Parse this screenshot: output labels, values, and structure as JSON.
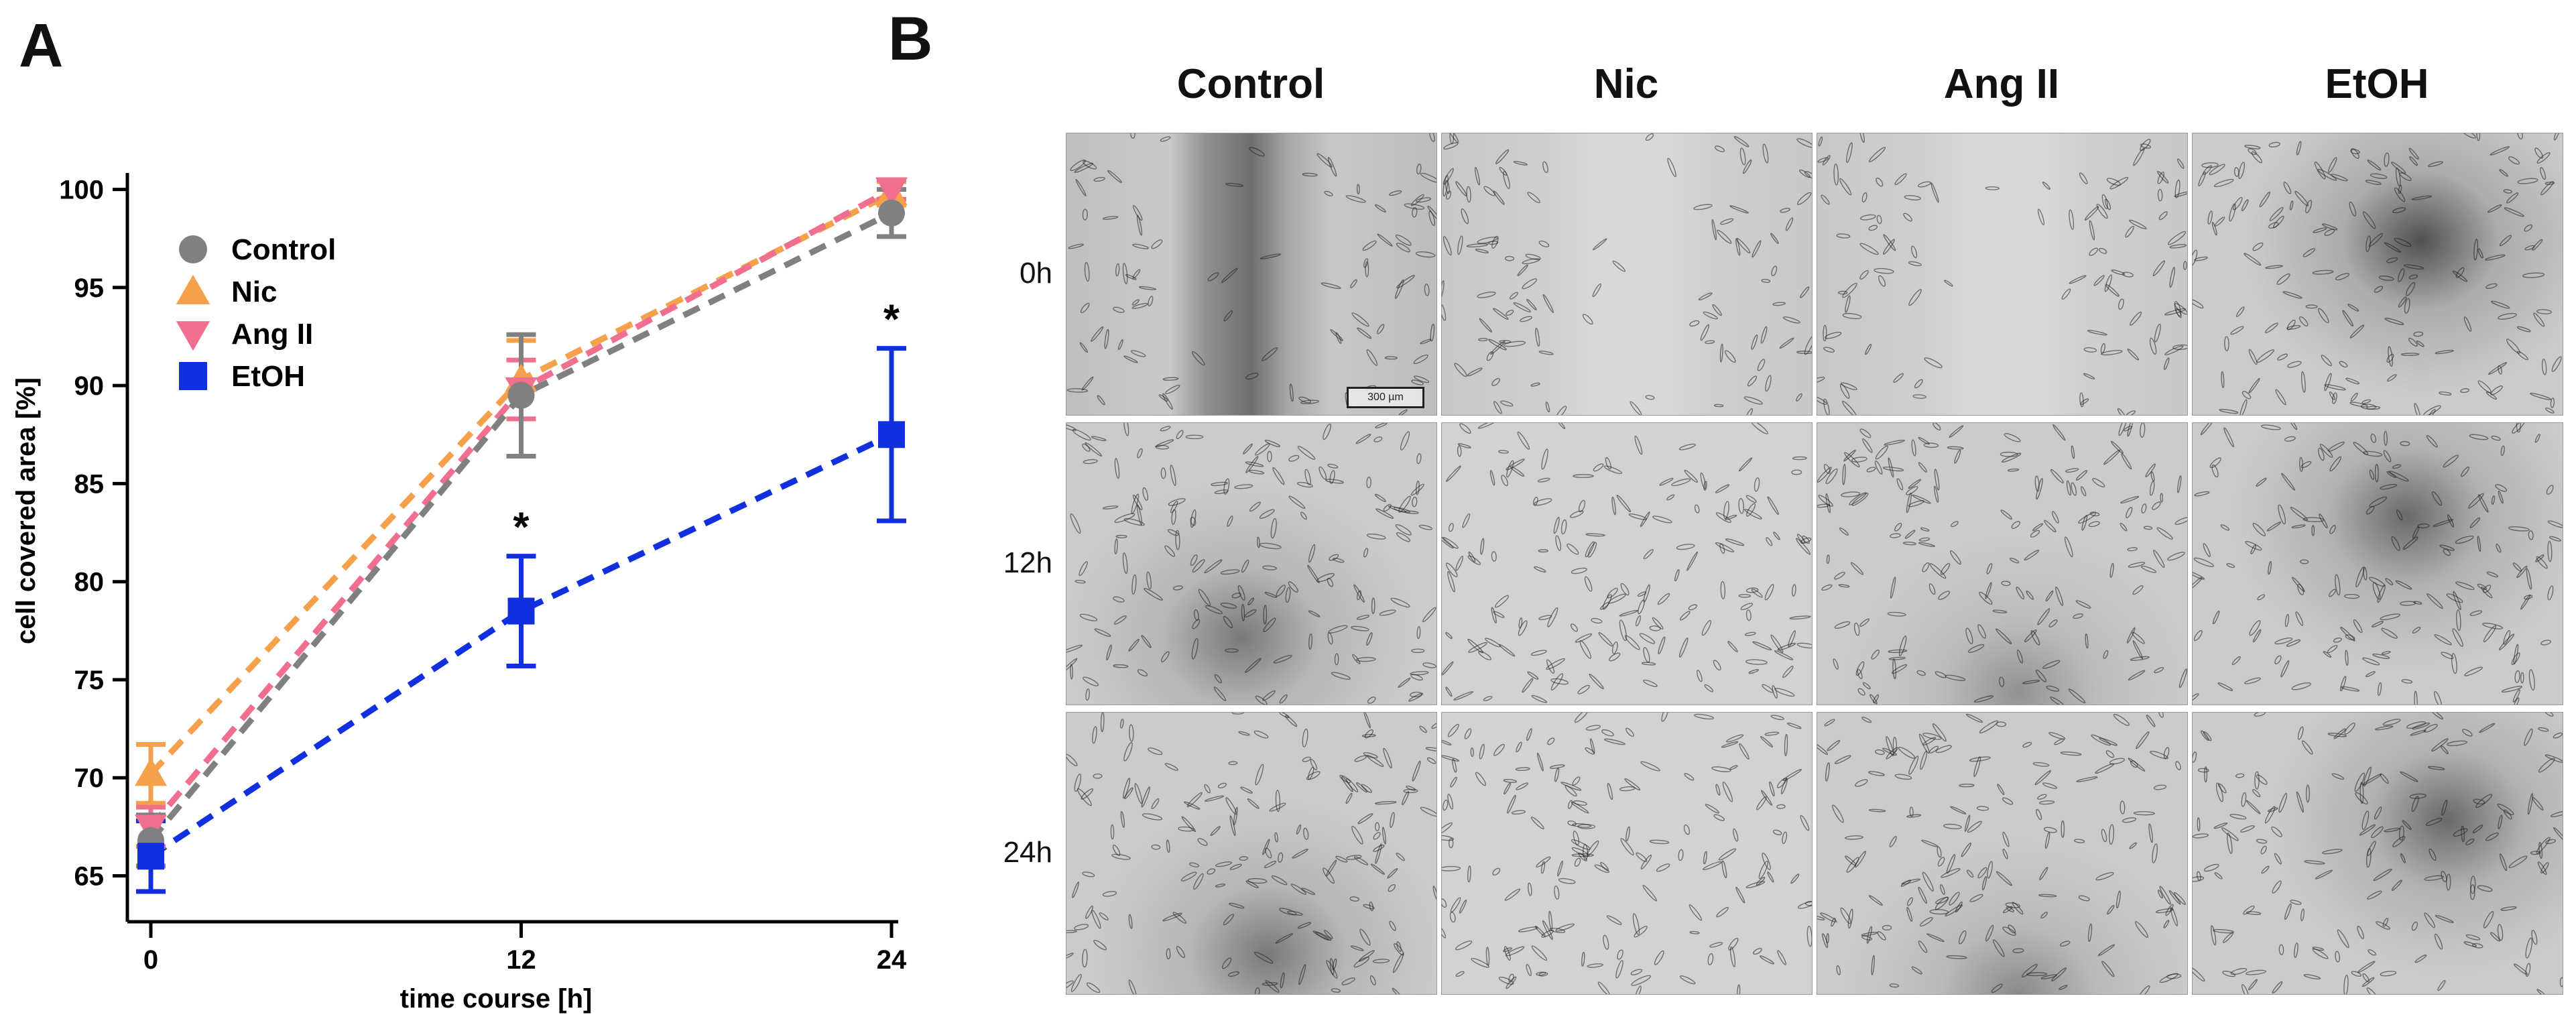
{
  "panels": {
    "a_label": "A",
    "b_label": "B"
  },
  "chart_data": {
    "type": "line",
    "title": "",
    "xlabel": "time course [h]",
    "ylabel": "cell covered area [%]",
    "x": [
      0,
      12,
      24
    ],
    "xticks": [
      "0",
      "12",
      "24"
    ],
    "yticks": [
      "65",
      "70",
      "75",
      "80",
      "85",
      "90",
      "95",
      "100"
    ],
    "ylim": [
      63,
      100.5
    ],
    "legend_position": "top-left",
    "significance_marker": "*",
    "significant_points": [
      {
        "series": "EtOH",
        "x": 12
      },
      {
        "series": "EtOH",
        "x": 24
      }
    ],
    "series": [
      {
        "name": "Control",
        "marker": "circle",
        "color": "#808080",
        "values": [
          66.8,
          89.5,
          98.8
        ],
        "errors": [
          1.3,
          3.1,
          1.2
        ]
      },
      {
        "name": "Nic",
        "marker": "triangle-up",
        "color": "#f5a04a",
        "values": [
          70.2,
          90.3,
          99.8
        ],
        "errors": [
          1.5,
          2.0,
          0.6
        ]
      },
      {
        "name": "Ang II",
        "marker": "triangle-down",
        "color": "#f06e8e",
        "values": [
          67.5,
          89.8,
          100.0
        ],
        "errors": [
          1.0,
          1.5,
          0.5
        ]
      },
      {
        "name": "EtOH",
        "marker": "square",
        "color": "#1030e0",
        "values": [
          66.0,
          78.5,
          87.5
        ],
        "errors": [
          1.8,
          2.8,
          4.4
        ]
      }
    ]
  },
  "micrographs": {
    "columns": [
      "Control",
      "Nic",
      "Ang II",
      "EtOH"
    ],
    "rows": [
      "0h",
      "12h",
      "24h"
    ],
    "scale_bar_label": "300 µm"
  }
}
